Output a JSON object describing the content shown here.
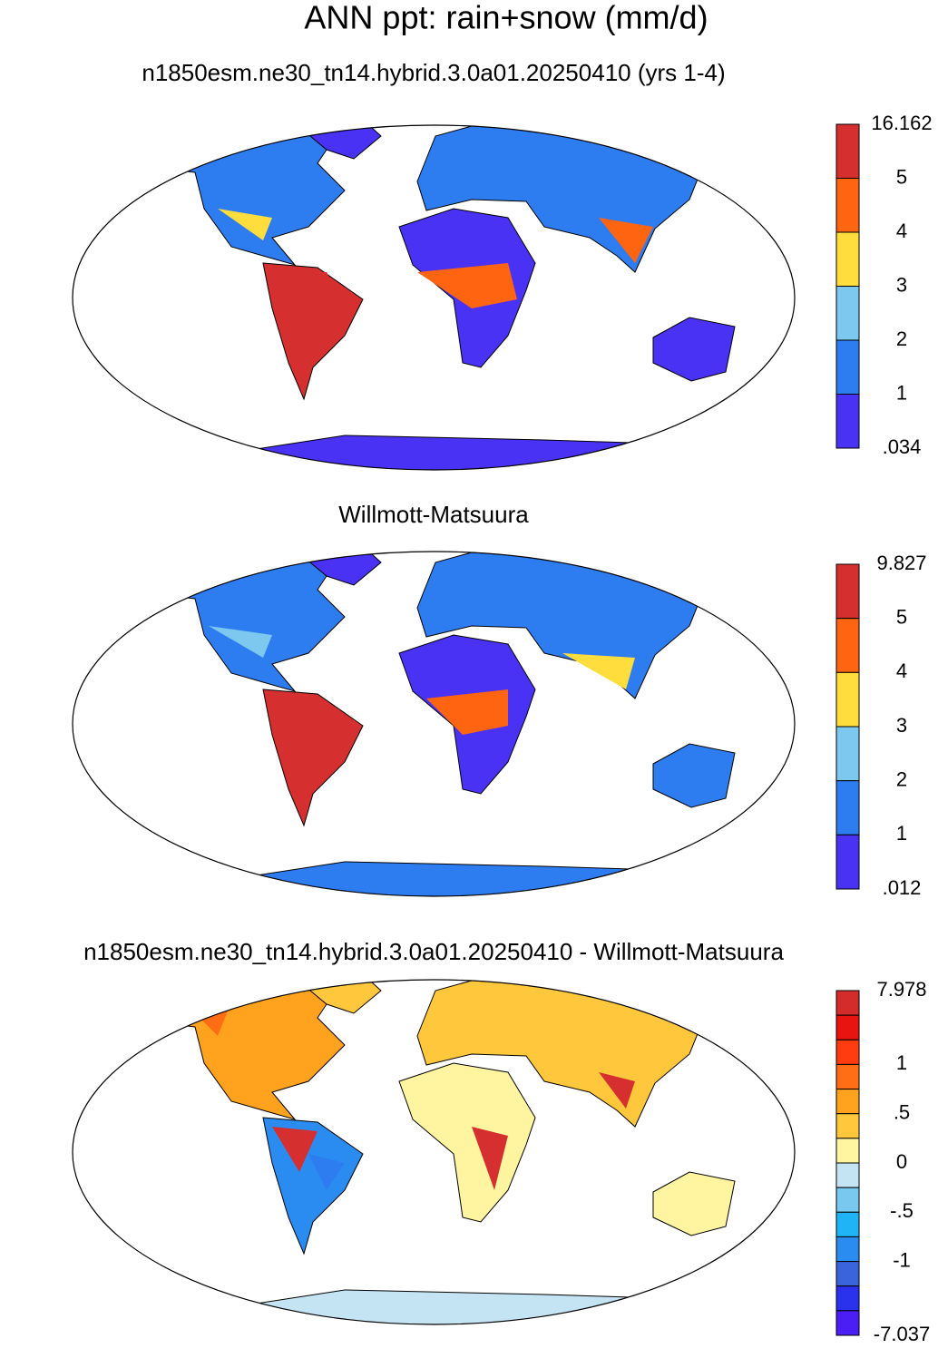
{
  "title": "ANN ppt: rain+snow (mm/d)",
  "panels": [
    {
      "title": "n1850esm.ne30_tn14.hybrid.3.0a01.20250410 (yrs 1-4)",
      "colorbar": {
        "labels": [
          "16.162",
          "5",
          "4",
          "3",
          "2",
          "1",
          ".034"
        ],
        "colors": [
          "#d62f2f",
          "#ff6410",
          "#ffdd3c",
          "#7dc8ee",
          "#2e7df0",
          "#4a32f5"
        ]
      }
    },
    {
      "title": "Willmott-Matsuura",
      "colorbar": {
        "labels": [
          "9.827",
          "5",
          "4",
          "3",
          "2",
          "1",
          ".012"
        ],
        "colors": [
          "#d62f2f",
          "#ff6410",
          "#ffdd3c",
          "#7dc8ee",
          "#2e7df0",
          "#4a32f5"
        ]
      }
    },
    {
      "title": "n1850esm.ne30_tn14.hybrid.3.0a01.20250410 - Willmott-Matsuura",
      "colorbar": {
        "labels": [
          "7.978",
          "1",
          ".5",
          "0",
          "-.5",
          "-1",
          "-7.037"
        ],
        "colors": [
          "#d42b2b",
          "#e8140f",
          "#ff3c10",
          "#ff6e14",
          "#ffa21e",
          "#ffc83c",
          "#fff5a0",
          "#c4e4f4",
          "#78c8f0",
          "#1eb4f5",
          "#2a8cf0",
          "#3a64dc",
          "#2a32ee",
          "#4a1ef5"
        ]
      }
    }
  ]
}
